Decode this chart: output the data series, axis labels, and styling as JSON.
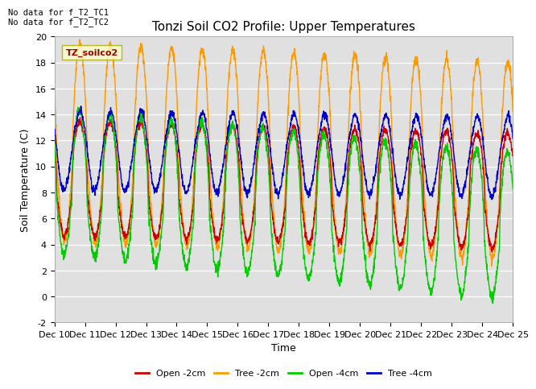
{
  "title": "Tonzi Soil CO2 Profile: Upper Temperatures",
  "xlabel": "Time",
  "ylabel": "Soil Temperature (C)",
  "ylim": [
    -2,
    20
  ],
  "xlim": [
    0,
    15
  ],
  "xtick_labels": [
    "Dec 10",
    "Dec 11",
    "Dec 12",
    "Dec 13",
    "Dec 14",
    "Dec 15",
    "Dec 16",
    "Dec 17",
    "Dec 18",
    "Dec 19",
    "Dec 20",
    "Dec 21",
    "Dec 22",
    "Dec 23",
    "Dec 24",
    "Dec 25"
  ],
  "bg_color": "#e0e0e0",
  "fig_bg": "#ffffff",
  "annotation": "No data for f_T2_TC1\nNo data for f_T2_TC2",
  "legend_box_label": "TZ_soilco2",
  "legend_entries": [
    "Open -2cm",
    "Tree -2cm",
    "Open -4cm",
    "Tree -4cm"
  ],
  "line_colors": [
    "#cc0000",
    "#ff9900",
    "#00cc00",
    "#0000cc"
  ],
  "title_fontsize": 11,
  "axis_fontsize": 9,
  "tick_fontsize": 8
}
